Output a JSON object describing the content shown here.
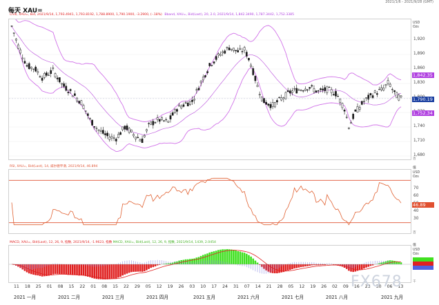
{
  "date_range": "2021/1/6 - 2021/9/28 (GMT)",
  "title": "每天 XAU=",
  "price_legend": {
    "instrument": "Cndl, XAU=, Bid, 2021/9/14, 1,793.4941, 1,793.8192, 1,788.8900, 1,790.1900, -3.2900, (-.18%)",
    "bollinger": "Bband, XAU=, Bid(Last), 20, 2.0, 2021/9/14, 1,842.3490, 1,787.3442, 1,752.3385"
  },
  "price_axis": {
    "unit": [
      "USD",
      "Ozs"
    ],
    "ticks": [
      "1,920",
      "1,890",
      "1,860",
      "1,830",
      "1,800",
      "1,770",
      "1,740",
      "1,710",
      "1,680"
    ],
    "current_price": "1,790.19",
    "upper_band_tag": "1,842.35",
    "lower_band_tag": "1,752.34",
    "scale_label": "百"
  },
  "rsi_panel": {
    "legend": "RSI, XAU=, Bid(Last), 14, 威尔德平滑, 2021/9/14, 46.894",
    "unit_top": "值",
    "unit": [
      "USD",
      "Ozs"
    ],
    "ticks": [
      "70",
      "60",
      "50",
      "40",
      "30"
    ],
    "current_value": "46.89",
    "scale_label": "百"
  },
  "macd_panel": {
    "legend_a": "MACD, XAU=, Bid(Last), 12, 26, 9, 指数, 2021/9/14, -1.9623, 指数",
    "legend_b": "MACD, XAU=, Bid(Last), 12, 26, 9, 指数, 2021/9/14, 1439, 2.0454",
    "unit_top": "值",
    "unit": [
      "USD",
      "Ozs"
    ],
    "scale_label": "千"
  },
  "x_axis": {
    "days": [
      "11",
      "18",
      "25",
      "01",
      "08",
      "15",
      "22",
      "01",
      "08",
      "15",
      "22",
      "29",
      "05",
      "12",
      "19",
      "26",
      "03",
      "10",
      "17",
      "24",
      "31",
      "07",
      "14",
      "21",
      "28",
      "05",
      "12",
      "19",
      "26",
      "02",
      "09",
      "16",
      "23",
      "30",
      "06",
      "13"
    ],
    "months": [
      "2021 一月",
      "2021 二月",
      "2021 三月",
      "2021 四月",
      "2021 五月",
      "2021 六月",
      "2021 七月",
      "2021 八月",
      "2021 九月"
    ]
  },
  "watermark": "FX678",
  "colors": {
    "candle": "#1a1a1a",
    "band": "#d070e8",
    "mid": "#c060e0",
    "rsi": "#e06030",
    "rsi_level": "#e05030",
    "macd_pos": "#40e020",
    "macd_neg": "#e02020",
    "current": "#1a3fa0",
    "band_tag": "#b040e0"
  }
}
